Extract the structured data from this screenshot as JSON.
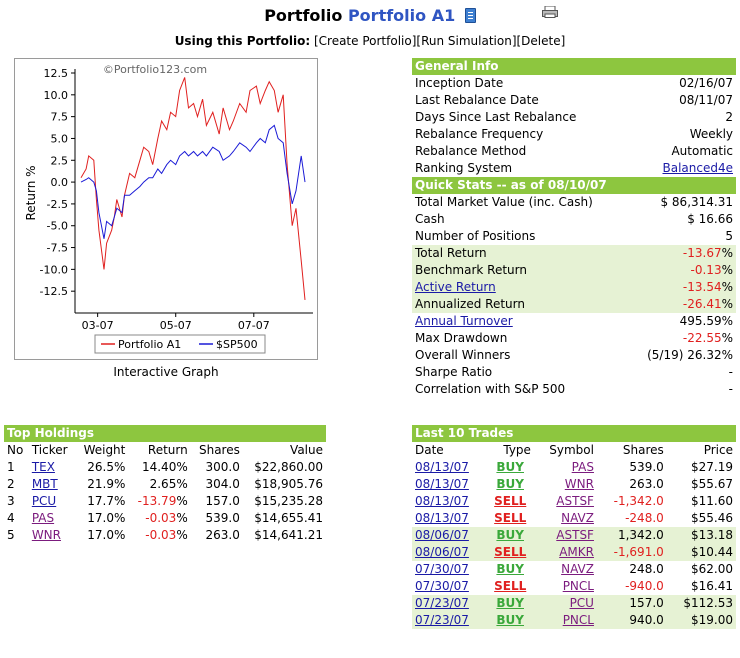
{
  "header": {
    "title_prefix": "Portfolio",
    "portfolio_name": "Portfolio A1",
    "using_label": "Using this Portfolio:",
    "actions": [
      "[Create Portfolio]",
      "[Run Simulation]",
      "[Delete]"
    ]
  },
  "graph": {
    "caption": "Interactive Graph",
    "watermark": "©Portfolio123.com"
  },
  "chart_data": {
    "type": "line",
    "title": "",
    "ylabel": "Return %",
    "xlabel": "",
    "ylim": [
      -15,
      12.5
    ],
    "yticks": [
      "12.5",
      "10.0",
      "7.5",
      "5.0",
      "2.5",
      "0.0",
      "-2.5",
      "-5.0",
      "-7.5",
      "-10.0",
      "-12.5"
    ],
    "xticks": [
      "03-07",
      "05-07",
      "07-07"
    ],
    "xtick_dates": [
      "2007-03-01",
      "2007-05-01",
      "2007-07-01"
    ],
    "x_range": [
      "2007-02-16",
      "2007-08-10"
    ],
    "legend": "bottom",
    "grid": false,
    "series": [
      {
        "name": "Portfolio A1",
        "color": "#e0201f",
        "x": [
          "2007-02-16",
          "2007-02-20",
          "2007-02-22",
          "2007-02-26",
          "2007-02-28",
          "2007-03-02",
          "2007-03-06",
          "2007-03-08",
          "2007-03-12",
          "2007-03-14",
          "2007-03-16",
          "2007-03-20",
          "2007-03-22",
          "2007-03-26",
          "2007-03-30",
          "2007-04-03",
          "2007-04-06",
          "2007-04-10",
          "2007-04-13",
          "2007-04-17",
          "2007-04-20",
          "2007-04-24",
          "2007-04-27",
          "2007-05-01",
          "2007-05-04",
          "2007-05-08",
          "2007-05-11",
          "2007-05-15",
          "2007-05-18",
          "2007-05-22",
          "2007-05-25",
          "2007-05-30",
          "2007-06-04",
          "2007-06-07",
          "2007-06-12",
          "2007-06-15",
          "2007-06-20",
          "2007-06-25",
          "2007-06-28",
          "2007-07-03",
          "2007-07-06",
          "2007-07-10",
          "2007-07-13",
          "2007-07-17",
          "2007-07-20",
          "2007-07-24",
          "2007-07-27",
          "2007-07-31",
          "2007-08-03",
          "2007-08-07",
          "2007-08-10"
        ],
        "values": [
          0.5,
          1.5,
          3.0,
          2.5,
          -2.0,
          -5.5,
          -10.0,
          -7.0,
          -5.5,
          -4.0,
          -2.0,
          -4.0,
          -1.5,
          1.0,
          0.5,
          2.5,
          4.0,
          3.5,
          2.0,
          5.0,
          7.0,
          6.0,
          8.0,
          7.5,
          10.5,
          12.0,
          8.5,
          9.0,
          7.5,
          9.5,
          6.5,
          8.0,
          5.5,
          8.5,
          6.0,
          7.0,
          9.0,
          8.0,
          10.5,
          11.0,
          9.0,
          10.5,
          11.5,
          10.5,
          8.0,
          10.0,
          2.0,
          -5.0,
          -3.0,
          -9.0,
          -13.5
        ]
      },
      {
        "name": "$SP500",
        "color": "#1a1ad6",
        "x": [
          "2007-02-16",
          "2007-02-20",
          "2007-02-22",
          "2007-02-26",
          "2007-02-28",
          "2007-03-02",
          "2007-03-06",
          "2007-03-08",
          "2007-03-12",
          "2007-03-14",
          "2007-03-16",
          "2007-03-20",
          "2007-03-22",
          "2007-03-26",
          "2007-03-30",
          "2007-04-03",
          "2007-04-06",
          "2007-04-10",
          "2007-04-13",
          "2007-04-17",
          "2007-04-20",
          "2007-04-24",
          "2007-04-27",
          "2007-05-01",
          "2007-05-04",
          "2007-05-08",
          "2007-05-11",
          "2007-05-15",
          "2007-05-18",
          "2007-05-22",
          "2007-05-25",
          "2007-05-30",
          "2007-06-04",
          "2007-06-07",
          "2007-06-12",
          "2007-06-15",
          "2007-06-20",
          "2007-06-25",
          "2007-06-28",
          "2007-07-03",
          "2007-07-06",
          "2007-07-10",
          "2007-07-13",
          "2007-07-17",
          "2007-07-20",
          "2007-07-24",
          "2007-07-27",
          "2007-07-31",
          "2007-08-03",
          "2007-08-07",
          "2007-08-10"
        ],
        "values": [
          0.0,
          0.3,
          0.5,
          0.0,
          -1.0,
          -3.5,
          -6.5,
          -4.5,
          -5.0,
          -4.0,
          -3.0,
          -3.5,
          -1.5,
          -1.5,
          -1.0,
          -0.5,
          0.0,
          0.5,
          0.5,
          1.5,
          1.0,
          2.0,
          2.5,
          2.0,
          3.0,
          3.5,
          3.0,
          3.5,
          3.0,
          3.5,
          3.0,
          4.0,
          3.5,
          2.5,
          3.0,
          3.5,
          4.5,
          4.0,
          3.5,
          4.5,
          5.0,
          4.5,
          6.0,
          6.5,
          5.0,
          4.5,
          1.0,
          -2.5,
          -1.0,
          3.0,
          0.0
        ]
      }
    ]
  },
  "general_info": {
    "header": "General Info",
    "rows": [
      {
        "label": "Inception Date",
        "value": "02/16/07"
      },
      {
        "label": "Last Rebalance Date",
        "value": "08/11/07"
      },
      {
        "label": "Days Since Last Rebalance",
        "value": "2"
      },
      {
        "label": "Rebalance Frequency",
        "value": "Weekly"
      },
      {
        "label": "Rebalance Method",
        "value": "Automatic"
      },
      {
        "label": "Ranking System",
        "value": "Balanced4e"
      }
    ]
  },
  "quick_stats": {
    "header": "Quick Stats -- as of 08/10/07",
    "rows": [
      {
        "label": "Total Market Value (inc. Cash)",
        "value": "$ 86,314.31"
      },
      {
        "label": "Cash",
        "value": "$ 16.66"
      },
      {
        "label": "Number of Positions",
        "value": "5"
      },
      {
        "label": "Total Return",
        "value": "-13.67",
        "unit": "%"
      },
      {
        "label": "Benchmark Return",
        "value": "-0.13",
        "unit": "%"
      },
      {
        "label": "Active Return",
        "value": "-13.54",
        "unit": "%"
      },
      {
        "label": "Annualized Return",
        "value": "-26.41",
        "unit": "%"
      },
      {
        "label": "Annual Turnover",
        "value": "495.59",
        "unit": "%"
      },
      {
        "label": "Max Drawdown",
        "value": "-22.55",
        "unit": "%"
      },
      {
        "label": "Overall Winners",
        "value": "(5/19) 26.32%"
      },
      {
        "label": "Sharpe Ratio",
        "value": "-"
      },
      {
        "label": "Correlation with S&P 500",
        "value": "-"
      }
    ]
  },
  "top_holdings": {
    "header": "Top Holdings",
    "columns": [
      "No",
      "Ticker",
      "Weight",
      "Return",
      "Shares",
      "Value"
    ],
    "rows": [
      {
        "no": "1",
        "ticker": "TEX",
        "weight": "26.5%",
        "ret": "14.40%",
        "shares": "300.0",
        "value": "$22,860.00"
      },
      {
        "no": "2",
        "ticker": "MBT",
        "weight": "21.9%",
        "ret": "2.65%",
        "shares": "304.0",
        "value": "$18,905.76"
      },
      {
        "no": "3",
        "ticker": "PCU",
        "weight": "17.7%",
        "ret": "-13.79",
        "ret_unit": "%",
        "shares": "157.0",
        "value": "$15,235.28"
      },
      {
        "no": "4",
        "ticker": "PAS",
        "weight": "17.0%",
        "ret": "-0.03",
        "ret_unit": "%",
        "shares": "539.0",
        "value": "$14,655.41"
      },
      {
        "no": "5",
        "ticker": "WNR",
        "weight": "17.0%",
        "ret": "-0.03",
        "ret_unit": "%",
        "shares": "263.0",
        "value": "$14,641.21"
      }
    ]
  },
  "last_trades": {
    "header": "Last 10 Trades",
    "columns": [
      "Date",
      "Type",
      "Symbol",
      "Shares",
      "Price"
    ],
    "rows": [
      {
        "date": "08/13/07",
        "type": "BUY",
        "symbol": "PAS",
        "shares": "539.0",
        "price": "$27.19"
      },
      {
        "date": "08/13/07",
        "type": "BUY",
        "symbol": "WNR",
        "shares": "263.0",
        "price": "$55.67"
      },
      {
        "date": "08/13/07",
        "type": "SELL",
        "symbol": "ASTSF",
        "shares": "-1,342.0",
        "price": "$11.60"
      },
      {
        "date": "08/13/07",
        "type": "SELL",
        "symbol": "NAVZ",
        "shares": "-248.0",
        "price": "$55.46"
      },
      {
        "date": "08/06/07",
        "type": "BUY",
        "symbol": "ASTSF",
        "shares": "1,342.0",
        "price": "$13.18"
      },
      {
        "date": "08/06/07",
        "type": "SELL",
        "symbol": "AMKR",
        "shares": "-1,691.0",
        "price": "$10.44"
      },
      {
        "date": "07/30/07",
        "type": "BUY",
        "symbol": "NAVZ",
        "shares": "248.0",
        "price": "$62.00"
      },
      {
        "date": "07/30/07",
        "type": "SELL",
        "symbol": "PNCL",
        "shares": "-940.0",
        "price": "$16.41"
      },
      {
        "date": "07/23/07",
        "type": "BUY",
        "symbol": "PCU",
        "shares": "157.0",
        "price": "$112.53"
      },
      {
        "date": "07/23/07",
        "type": "BUY",
        "symbol": "PNCL",
        "shares": "940.0",
        "price": "$19.00"
      }
    ]
  }
}
